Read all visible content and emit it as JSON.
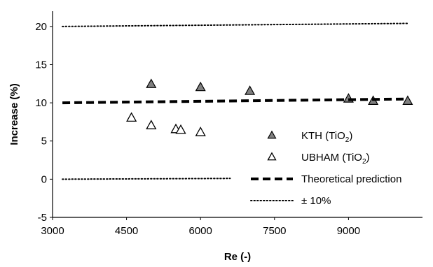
{
  "chart_data": {
    "type": "scatter",
    "title": "",
    "xlabel": "Re (-)",
    "ylabel": "Increase (%)",
    "xlim": [
      3000,
      10500
    ],
    "ylim": [
      -5,
      22
    ],
    "xticks": [
      3000,
      4500,
      6000,
      7500,
      9000
    ],
    "yticks": [
      -5,
      0,
      5,
      10,
      15,
      20
    ],
    "grid": false,
    "legend_position": "bottom-right",
    "series": [
      {
        "name": "KTH (TiO",
        "name_sub": "2",
        "name_suffix": ")",
        "kind": "scatter",
        "marker": "triangle-filled",
        "color": "#808080",
        "x": [
          5000,
          6000,
          7000,
          9000,
          9500,
          10200
        ],
        "y": [
          12.4,
          12.0,
          11.5,
          10.5,
          10.2,
          10.2
        ]
      },
      {
        "name": "UBHAM (TiO",
        "name_sub": "2",
        "name_suffix": ")",
        "kind": "scatter",
        "marker": "triangle-open",
        "color": "#000000",
        "x": [
          4600,
          5000,
          5500,
          5600,
          6000
        ],
        "y": [
          8.0,
          7.0,
          6.5,
          6.4,
          6.1
        ]
      },
      {
        "name": "Theoretical prediction",
        "kind": "line",
        "style": "dashed-thick",
        "color": "#000000",
        "x": [
          3200,
          10200
        ],
        "y": [
          10.0,
          10.5
        ]
      }
    ],
    "bounds": {
      "name": "± 10%",
      "style": "dotted",
      "color": "#000000",
      "upper": {
        "x": [
          3200,
          10200
        ],
        "y": [
          20.0,
          20.4
        ]
      },
      "lower": {
        "x": [
          3200,
          6600
        ],
        "y": [
          0.0,
          0.1
        ]
      }
    }
  }
}
